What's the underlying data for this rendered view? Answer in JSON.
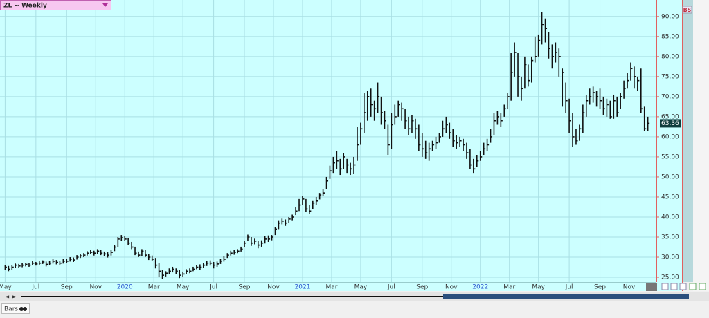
{
  "ui": {
    "symbol_menu": "ZL ~ Weekly",
    "badge": "BS",
    "status_tab": "Bars"
  },
  "chart_data": {
    "type": "ohlc",
    "color": "#111111",
    "grid": true,
    "last_price": {
      "value": 63.36,
      "label": "63.36"
    },
    "xlim": [
      -1.5,
      190.5
    ],
    "xticks": [
      {
        "value": 0,
        "label": "May"
      },
      {
        "value": 9,
        "label": "Jul"
      },
      {
        "value": 18,
        "label": "Sep"
      },
      {
        "value": 26.5,
        "label": "Nov"
      },
      {
        "value": 35,
        "label": "2020"
      },
      {
        "value": 43.5,
        "label": "Mar"
      },
      {
        "value": 52,
        "label": "May"
      },
      {
        "value": 61,
        "label": "Jul"
      },
      {
        "value": 70,
        "label": "Sep"
      },
      {
        "value": 78.5,
        "label": "Nov"
      },
      {
        "value": 87,
        "label": "2021"
      },
      {
        "value": 95.5,
        "label": "Mar"
      },
      {
        "value": 104,
        "label": "May"
      },
      {
        "value": 113,
        "label": "Jul"
      },
      {
        "value": 122,
        "label": "Sep"
      },
      {
        "value": 130.5,
        "label": "Nov"
      },
      {
        "value": 139,
        "label": "2022"
      },
      {
        "value": 147.5,
        "label": "Mar"
      },
      {
        "value": 156,
        "label": "May"
      },
      {
        "value": 165,
        "label": "Jul"
      },
      {
        "value": 174,
        "label": "Sep"
      },
      {
        "value": 182.5,
        "label": "Nov"
      }
    ],
    "ylim": [
      23.8,
      94.1
    ],
    "yticks": [
      {
        "value": 25,
        "label": "25.00"
      },
      {
        "value": 30,
        "label": "30.00"
      },
      {
        "value": 35,
        "label": "35.00"
      },
      {
        "value": 40,
        "label": "40.00"
      },
      {
        "value": 45,
        "label": "45.00"
      },
      {
        "value": 50,
        "label": "50.00"
      },
      {
        "value": 55,
        "label": "55.00"
      },
      {
        "value": 60,
        "label": "60.00"
      },
      {
        "value": 65,
        "label": "65.00"
      },
      {
        "value": 70,
        "label": "70.00"
      },
      {
        "value": 75,
        "label": "75.00"
      },
      {
        "value": 80,
        "label": "80.00"
      },
      {
        "value": 85,
        "label": "85.00"
      },
      {
        "value": 90,
        "label": "90.00"
      }
    ],
    "high": [
      28,
      27.8,
      28,
      28.4,
      28.3,
      28.5,
      28.6,
      28.5,
      29,
      28.8,
      29,
      29.2,
      28.9,
      29,
      29.6,
      29.3,
      29,
      29.5,
      29.5,
      30,
      29.9,
      30.5,
      30.8,
      31,
      31.5,
      31.8,
      31.6,
      32,
      31.8,
      31.4,
      31.2,
      31.8,
      33,
      35,
      35.5,
      35.3,
      34.8,
      33.8,
      32.6,
      31.4,
      32,
      31.8,
      30.8,
      30.4,
      29.8,
      28.5,
      26.8,
      26.5,
      27.2,
      27.6,
      27.2,
      26.8,
      26.4,
      27,
      27.2,
      27.6,
      28,
      28.2,
      28.6,
      29,
      29.2,
      28.8,
      28.9,
      29.6,
      30.2,
      31,
      31.6,
      31.8,
      32,
      32.6,
      34,
      35.6,
      35,
      34.6,
      34,
      34.2,
      35.2,
      35.4,
      35.5,
      37.5,
      39.2,
      39.6,
      39.4,
      40,
      40.6,
      42.5,
      44.5,
      45.2,
      44.5,
      43,
      44,
      45,
      46,
      47,
      50,
      52.8,
      55,
      56.5,
      54.5,
      56,
      54.5,
      53.5,
      55,
      62.5,
      63.5,
      71,
      71.5,
      72,
      69,
      73.5,
      70,
      66.5,
      63,
      66,
      68,
      69,
      68.5,
      67,
      65,
      65.5,
      64.5,
      63,
      61,
      59,
      58.5,
      59,
      60,
      61,
      64,
      65,
      63.5,
      62,
      60.5,
      60,
      59.5,
      58.5,
      57,
      54.5,
      55.5,
      56.5,
      58.5,
      59.5,
      62,
      66,
      66.5,
      66,
      68,
      71,
      81,
      83.5,
      81,
      75,
      80,
      78,
      80,
      85,
      85.5,
      91,
      89.5,
      86,
      83,
      83.5,
      82,
      77,
      73.5,
      69.5,
      66,
      62,
      63,
      68,
      70.5,
      72,
      72.5,
      71.5,
      72,
      70,
      69.5,
      69,
      70.5,
      70,
      71,
      74,
      76,
      78.5,
      77.5,
      75,
      77,
      67.5,
      65
    ],
    "low": [
      26.8,
      26.5,
      26.9,
      27.3,
      27.3,
      27.5,
      27.7,
      27.6,
      28,
      27.9,
      28,
      28.3,
      27.7,
      28,
      28.4,
      28.2,
      28,
      28.4,
      28.5,
      28.9,
      28.8,
      29.4,
      29.8,
      30,
      30.4,
      30.7,
      30.4,
      30.8,
      30.5,
      30.2,
      29.9,
      30.4,
      31.5,
      32.5,
      34,
      34,
      33,
      32,
      30.5,
      30,
      30.3,
      30,
      29.3,
      29,
      27.2,
      25,
      24.6,
      25.2,
      25.8,
      26.2,
      25.8,
      24.8,
      25,
      25.8,
      26,
      26.5,
      27,
      26.9,
      27.4,
      27.8,
      27.9,
      27.2,
      27.6,
      28.3,
      28.9,
      29.8,
      30.4,
      30.6,
      31,
      31.4,
      32.5,
      34,
      32.8,
      33.2,
      32.2,
      32.6,
      33.4,
      33.8,
      34.2,
      35.5,
      37,
      38.2,
      37.8,
      38.6,
      39.2,
      40.5,
      41.5,
      43,
      41.3,
      40.8,
      42,
      43,
      44.4,
      45.3,
      47,
      49.5,
      51,
      52,
      50.5,
      52,
      51,
      50.5,
      50.8,
      54,
      58,
      61,
      64,
      65,
      64,
      66,
      63,
      62,
      55.5,
      57,
      63,
      65,
      64,
      62,
      60.5,
      61,
      59.5,
      56.5,
      55,
      54.5,
      54,
      56.5,
      57,
      58.5,
      60,
      61,
      59.5,
      57.5,
      57,
      57.5,
      56.5,
      54.5,
      52,
      51,
      52.5,
      54,
      55.5,
      56.5,
      58.5,
      60.5,
      63,
      62.5,
      65,
      67,
      69,
      75,
      70,
      69,
      72,
      72.5,
      73.5,
      78.5,
      80,
      83,
      83.5,
      79.5,
      77,
      78.5,
      75,
      67.5,
      66,
      61,
      57.5,
      58,
      59,
      61,
      65,
      68,
      68.5,
      67.5,
      67,
      65.5,
      65,
      64.5,
      64.5,
      65,
      67,
      69.5,
      72,
      74,
      72,
      71.5,
      66,
      61.5,
      61.5
    ],
    "close": [
      27.5,
      27,
      27.5,
      28,
      27.8,
      28,
      28.2,
      28,
      28.5,
      28.3,
      28.5,
      28.8,
      28.2,
      28.5,
      29,
      28.7,
      28.5,
      29,
      29,
      29.5,
      29.3,
      30,
      30.3,
      30.5,
      31,
      31.2,
      31,
      31.5,
      31,
      30.8,
      30.5,
      31.2,
      32.5,
      34.5,
      34.8,
      34.5,
      33.5,
      32.5,
      31,
      30.5,
      31.5,
      30.5,
      30,
      29.5,
      28,
      26.5,
      25.5,
      26,
      26.5,
      27,
      26.5,
      25.5,
      25.8,
      26.5,
      26.5,
      27,
      27.5,
      27.5,
      28,
      28.5,
      28.5,
      28,
      28.3,
      29,
      29.5,
      30.5,
      31,
      31.2,
      31.5,
      32,
      33.5,
      35,
      33.5,
      34,
      33,
      33.5,
      34.5,
      34.5,
      35,
      37,
      38.5,
      39,
      38.5,
      39.5,
      40,
      41.5,
      43,
      44.5,
      42,
      41.5,
      43.5,
      44,
      45.5,
      46,
      49,
      51.5,
      53.5,
      54,
      52,
      55,
      53,
      52,
      53,
      58,
      62,
      66,
      70,
      68,
      67,
      70,
      66,
      64,
      58,
      63,
      65,
      68,
      67,
      64,
      62,
      64,
      62,
      58,
      57,
      56,
      57,
      58,
      58.5,
      60,
      62,
      63,
      61,
      59,
      58.5,
      59,
      58,
      56,
      53,
      52,
      54,
      55,
      57,
      58,
      60,
      64,
      65,
      64,
      67,
      70,
      76,
      81,
      75,
      72,
      78,
      74,
      79,
      80,
      84,
      88,
      87,
      82,
      80,
      81,
      80,
      76,
      69,
      64,
      60,
      59,
      62,
      66,
      69,
      70,
      71,
      70,
      69,
      67,
      68,
      65,
      69,
      66,
      70,
      72,
      74,
      77,
      75,
      74,
      67,
      62,
      63.36
    ]
  }
}
